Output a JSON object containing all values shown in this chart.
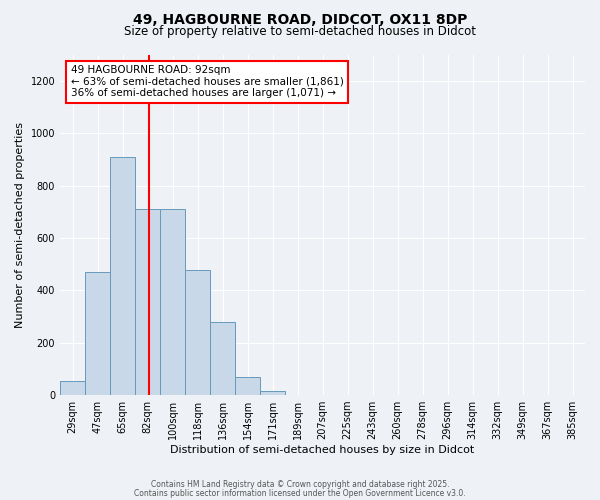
{
  "title_line1": "49, HAGBOURNE ROAD, DIDCOT, OX11 8DP",
  "title_line2": "Size of property relative to semi-detached houses in Didcot",
  "xlabel": "Distribution of semi-detached houses by size in Didcot",
  "ylabel": "Number of semi-detached properties",
  "bin_labels": [
    "29sqm",
    "47sqm",
    "65sqm",
    "82sqm",
    "100sqm",
    "118sqm",
    "136sqm",
    "154sqm",
    "171sqm",
    "189sqm",
    "207sqm",
    "225sqm",
    "243sqm",
    "260sqm",
    "278sqm",
    "296sqm",
    "314sqm",
    "332sqm",
    "349sqm",
    "367sqm",
    "385sqm"
  ],
  "bar_values": [
    55,
    470,
    910,
    710,
    710,
    480,
    280,
    70,
    15,
    0,
    0,
    0,
    0,
    0,
    0,
    0,
    0,
    0,
    0,
    0,
    0
  ],
  "bar_color": "#c8d8e8",
  "bar_edge_color": "#6699bb",
  "red_line_x": 3.056,
  "annotation_title": "49 HAGBOURNE ROAD: 92sqm",
  "annotation_line1": "← 63% of semi-detached houses are smaller (1,861)",
  "annotation_line2": "36% of semi-detached houses are larger (1,071) →",
  "footer_line1": "Contains HM Land Registry data © Crown copyright and database right 2025.",
  "footer_line2": "Contains public sector information licensed under the Open Government Licence v3.0.",
  "ylim": [
    0,
    1300
  ],
  "background_color": "#eef2f6"
}
